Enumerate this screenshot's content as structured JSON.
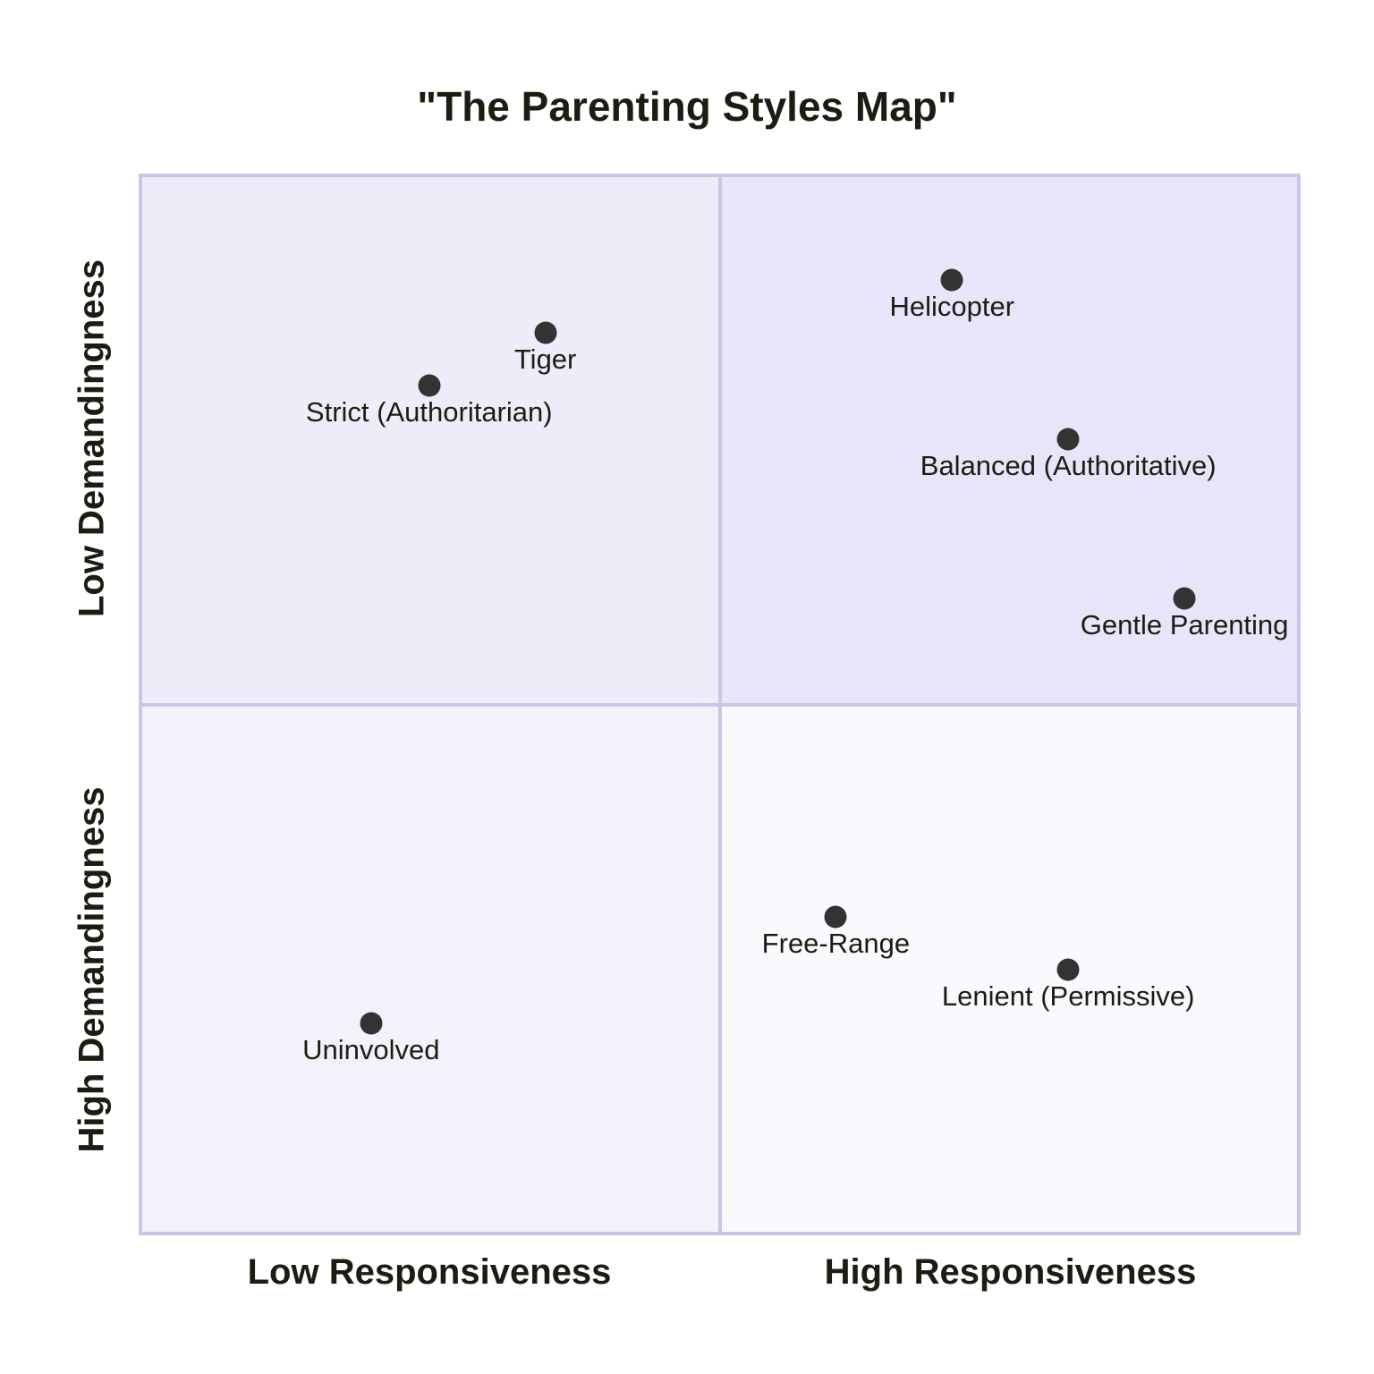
{
  "chart_data": {
    "type": "scatter",
    "subtype": "quadrant-chart",
    "title": "\"The Parenting Styles Map\"",
    "x_axis": {
      "left_label": "Low Responsiveness",
      "right_label": "High Responsiveness"
    },
    "y_axis": {
      "top_label": "Low Demandingness",
      "bottom_label": "High Demandingness"
    },
    "axis_ranges": {
      "x": [
        0,
        1
      ],
      "y": [
        0,
        1
      ],
      "y_origin": "bottom"
    },
    "grid": false,
    "legend": false,
    "quadrant_labels": [],
    "points": [
      {
        "label": "Strict (Authoritarian)",
        "x": 0.25,
        "y": 0.8
      },
      {
        "label": "Tiger",
        "x": 0.35,
        "y": 0.85
      },
      {
        "label": "Helicopter",
        "x": 0.7,
        "y": 0.9
      },
      {
        "label": "Balanced (Authoritative)",
        "x": 0.8,
        "y": 0.75
      },
      {
        "label": "Gentle Parenting",
        "x": 0.9,
        "y": 0.6
      },
      {
        "label": "Uninvolved",
        "x": 0.2,
        "y": 0.2
      },
      {
        "label": "Free-Range",
        "x": 0.6,
        "y": 0.3
      },
      {
        "label": "Lenient (Permissive)",
        "x": 0.8,
        "y": 0.25
      }
    ],
    "colors": {
      "quadrant_top_left": "#EDECF8",
      "quadrant_top_right": "#E7E5F9",
      "quadrant_bottom_left": "#F3F2FB",
      "quadrant_bottom_right": "#FAF9FE",
      "border": "#C8C7E8",
      "point": "#333333",
      "text": "#1C1C10"
    }
  }
}
